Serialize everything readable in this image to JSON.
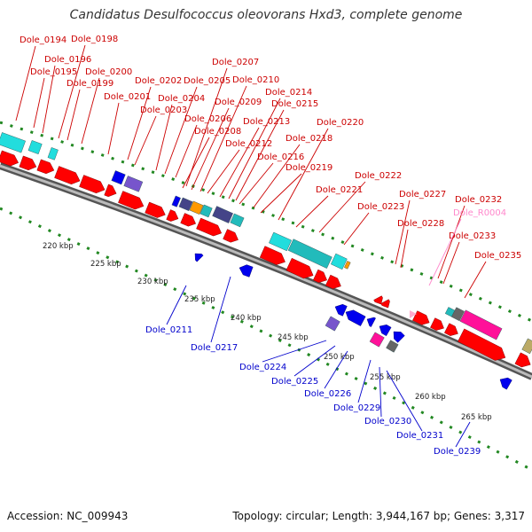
{
  "title": "Candidatus Desulfococcus oleovorans Hxd3, complete genome",
  "footer": {
    "accession": "Accession: NC_009943",
    "summary": "Topology: circular; Length: 3,944,167 bp; Genes: 3,317"
  },
  "colors": {
    "forward_label": "#cc0000",
    "reverse_label": "#0000cc",
    "rna_label": "#ff88cc",
    "backbone": "#888888",
    "tick": "#228822",
    "cds_red": "#ff0000",
    "cds_blue": "#0000ee",
    "cyan": "#22dddd",
    "teal": "#22bbbb",
    "purple": "#7755cc",
    "slate": "#444488",
    "pink": "#ff1199",
    "gray": "#666666",
    "orange": "#ff9900",
    "olive": "#bbaa66"
  },
  "scale": {
    "unit": "kbp",
    "ticks": [
      "220 kbp",
      "225 kbp",
      "230 kbp",
      "235 kbp",
      "240 kbp",
      "245 kbp",
      "250 kbp",
      "255 kbp",
      "260 kbp",
      "265 kbp"
    ]
  },
  "forward_genes": [
    "Dole_0194",
    "Dole_0195",
    "Dole_0196",
    "Dole_0198",
    "Dole_0199",
    "Dole_0200",
    "Dole_0201",
    "Dole_0202",
    "Dole_0203",
    "Dole_0204",
    "Dole_0205",
    "Dole_0206",
    "Dole_0207",
    "Dole_0208",
    "Dole_0209",
    "Dole_0210",
    "Dole_0212",
    "Dole_0213",
    "Dole_0214",
    "Dole_0215",
    "Dole_0216",
    "Dole_0218",
    "Dole_0219",
    "Dole_0220",
    "Dole_0221",
    "Dole_0222",
    "Dole_0223",
    "Dole_0227",
    "Dole_0228",
    "Dole_0232",
    "Dole_0233",
    "Dole_0235"
  ],
  "rna_genes": [
    "Dole_R0004"
  ],
  "reverse_genes": [
    "Dole_0211",
    "Dole_0217",
    "Dole_0224",
    "Dole_0225",
    "Dole_0226",
    "Dole_0229",
    "Dole_0230",
    "Dole_0231",
    "Dole_0239"
  ]
}
